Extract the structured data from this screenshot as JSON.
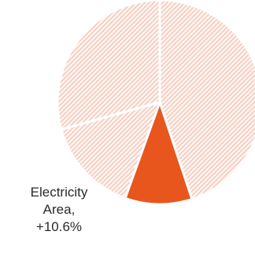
{
  "chart_data": {
    "type": "pie",
    "title": "",
    "start_angle_deg": 0,
    "direction": "clockwise",
    "slices": [
      {
        "label": "",
        "value": 44.9,
        "highlighted": false
      },
      {
        "label": "Electricity Area",
        "value": 10.6,
        "highlighted": true
      },
      {
        "label": "",
        "value": 15.2,
        "highlighted": false
      },
      {
        "label": "",
        "value": 29.3,
        "highlighted": false
      }
    ],
    "callout": {
      "line1": "Electricity",
      "line2": "Area,",
      "line3": "+10.6%"
    },
    "colors": {
      "highlight": "#e8561e",
      "hatch": "#f0b9a6",
      "hatch_bg": "#fdf2ee",
      "separator": "#ffffff"
    }
  }
}
